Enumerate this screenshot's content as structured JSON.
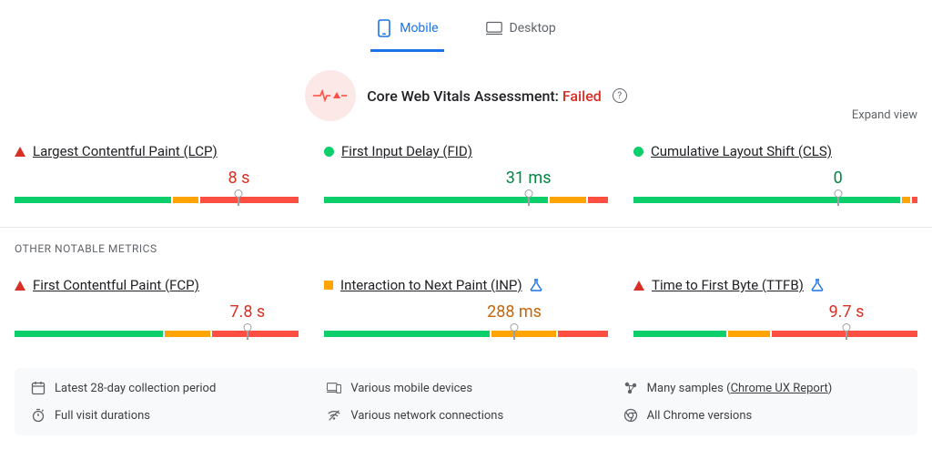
{
  "colors": {
    "accent_blue": "#1a73e8",
    "text_primary": "#202124",
    "text_secondary": "#5f6368",
    "green": "#0cce6b",
    "orange": "#ffa400",
    "red": "#ff4e42",
    "status_red": "#d93025",
    "footer_bg": "#f8f9fa",
    "divider": "#e8eaed",
    "pulse_bg": "#fde8e8"
  },
  "tabs": {
    "mobile": "Mobile",
    "desktop": "Desktop",
    "active": "mobile"
  },
  "assessment": {
    "label": "Core Web Vitals Assessment:",
    "status_text": "Failed",
    "status_color": "#d93025"
  },
  "expand_link": "Expand view",
  "section_other_label": "OTHER NOTABLE METRICS",
  "core_metrics": [
    {
      "id": "lcp",
      "label": "Largest Contentful Paint (LCP)",
      "status": "fail",
      "status_shape": "triangle-red",
      "value": "8 s",
      "value_color": "#d93025",
      "marker_pct": 79,
      "segments": [
        {
          "color": "green",
          "pct": 56
        },
        {
          "color": "orange",
          "pct": 9
        },
        {
          "color": "red",
          "pct": 35
        }
      ]
    },
    {
      "id": "fid",
      "label": "First Input Delay (FID)",
      "status": "pass",
      "status_shape": "circle-green",
      "value": "31 ms",
      "value_color": "#018642",
      "marker_pct": 72,
      "segments": [
        {
          "color": "green",
          "pct": 80
        },
        {
          "color": "orange",
          "pct": 13
        },
        {
          "color": "red",
          "pct": 7
        }
      ]
    },
    {
      "id": "cls",
      "label": "Cumulative Layout Shift (CLS)",
      "status": "pass",
      "status_shape": "circle-green",
      "value": "0",
      "value_color": "#018642",
      "marker_pct": 72,
      "segments": [
        {
          "color": "green",
          "pct": 95
        },
        {
          "color": "orange",
          "pct": 3
        },
        {
          "color": "red",
          "pct": 2
        }
      ]
    }
  ],
  "other_metrics": [
    {
      "id": "fcp",
      "label": "First Contentful Paint (FCP)",
      "status": "fail",
      "status_shape": "triangle-red",
      "value": "7.8 s",
      "value_color": "#d93025",
      "marker_pct": 82,
      "segments": [
        {
          "color": "green",
          "pct": 53
        },
        {
          "color": "orange",
          "pct": 16
        },
        {
          "color": "red",
          "pct": 31
        }
      ],
      "experimental": false
    },
    {
      "id": "inp",
      "label": "Interaction to Next Paint (INP)",
      "status": "warn",
      "status_shape": "square-orange",
      "value": "288 ms",
      "value_color": "#c5670a",
      "marker_pct": 67,
      "segments": [
        {
          "color": "green",
          "pct": 59
        },
        {
          "color": "orange",
          "pct": 23
        },
        {
          "color": "red",
          "pct": 18
        }
      ],
      "experimental": true
    },
    {
      "id": "ttfb",
      "label": "Time to First Byte (TTFB)",
      "status": "fail",
      "status_shape": "triangle-red",
      "value": "9.7 s",
      "value_color": "#d93025",
      "marker_pct": 75,
      "segments": [
        {
          "color": "green",
          "pct": 33
        },
        {
          "color": "orange",
          "pct": 15
        },
        {
          "color": "red",
          "pct": 52
        }
      ],
      "experimental": true
    }
  ],
  "footer": {
    "items": [
      {
        "icon": "calendar",
        "text": "Latest 28-day collection period"
      },
      {
        "icon": "devices",
        "text": "Various mobile devices"
      },
      {
        "icon": "samples",
        "text_prefix": "Many samples (",
        "link": "Chrome UX Report",
        "text_suffix": ")"
      },
      {
        "icon": "timer",
        "text": "Full visit durations"
      },
      {
        "icon": "wifi",
        "text": "Various network connections"
      },
      {
        "icon": "chrome",
        "text": "All Chrome versions"
      }
    ]
  }
}
